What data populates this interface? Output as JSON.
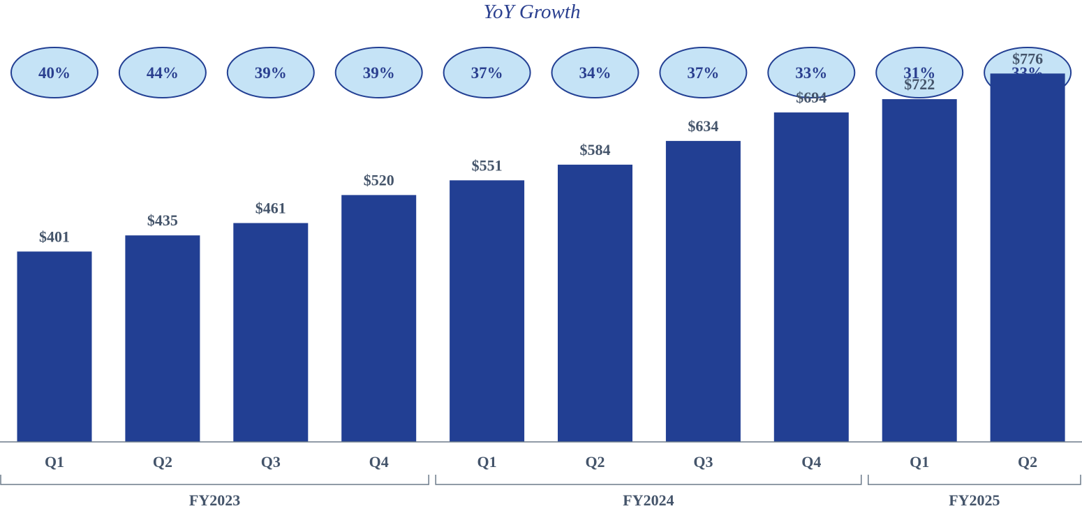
{
  "chart_data": {
    "type": "bar",
    "title": "YoY Growth",
    "categories": [
      "Q1",
      "Q2",
      "Q3",
      "Q4",
      "Q1",
      "Q2",
      "Q3",
      "Q4",
      "Q1",
      "Q2"
    ],
    "values": [
      401,
      435,
      461,
      520,
      551,
      584,
      634,
      694,
      722,
      776
    ],
    "value_labels": [
      "$401",
      "$435",
      "$461",
      "$520",
      "$551",
      "$584",
      "$634",
      "$694",
      "$722",
      "$776"
    ],
    "yoy_growth": [
      "40%",
      "44%",
      "39%",
      "39%",
      "37%",
      "34%",
      "37%",
      "33%",
      "31%",
      "33%"
    ],
    "groups": [
      {
        "label": "FY2023",
        "start": 0,
        "end": 3
      },
      {
        "label": "FY2024",
        "start": 4,
        "end": 7
      },
      {
        "label": "FY2025",
        "start": 8,
        "end": 9
      }
    ],
    "ylim": [
      0,
      800
    ],
    "xlabel": "",
    "ylabel": "",
    "grid": false,
    "colors": {
      "bar": "#223f93",
      "bubble_fill": "#c5e3f6",
      "bubble_stroke": "#223f93",
      "title": "#2a3f8f",
      "label": "#44546a",
      "axis": "#6b7a8a"
    }
  }
}
